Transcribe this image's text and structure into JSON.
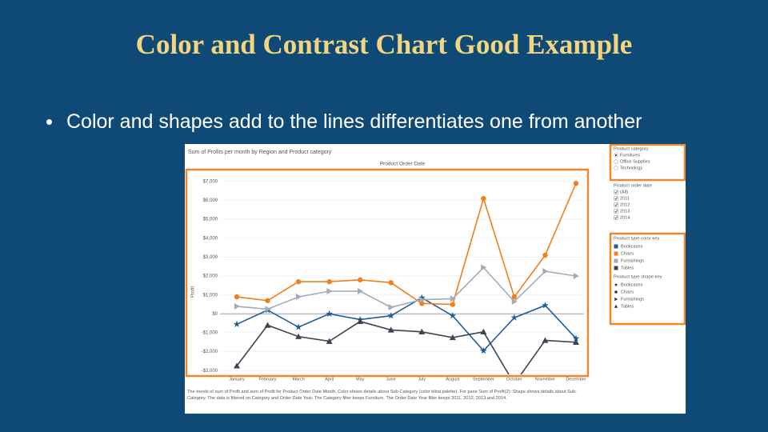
{
  "slide": {
    "title": "Color and Contrast Chart Good Example",
    "bullet": "Color and shapes add to the lines differentiates one from another"
  },
  "chart_data": {
    "type": "line",
    "title": "Sum of Profits per month by Region and Product category",
    "subtitle": "Product Order Date",
    "y_label": "Profit",
    "categories": [
      "January",
      "February",
      "March",
      "April",
      "May",
      "June",
      "July",
      "August",
      "September",
      "October",
      "November",
      "December"
    ],
    "series": [
      {
        "name": "Bookcases",
        "color": "#1f5c99",
        "shape": "star",
        "values": [
          -550,
          200,
          -700,
          0,
          -300,
          -100,
          850,
          -100,
          -1950,
          -200,
          450,
          -1300
        ]
      },
      {
        "name": "Chairs",
        "color": "#f07f1e",
        "shape": "circle",
        "values": [
          900,
          700,
          1700,
          1700,
          1800,
          1650,
          550,
          500,
          6100,
          900,
          3100,
          6900
        ]
      },
      {
        "name": "Furnishings",
        "color": "#a3acb9",
        "shape": "triangle-right",
        "values": [
          400,
          250,
          900,
          1200,
          1200,
          350,
          750,
          800,
          2450,
          650,
          2250,
          2000
        ]
      },
      {
        "name": "Tables",
        "color": "#3c4552",
        "shape": "triangle-up",
        "values": [
          -2750,
          -600,
          -1200,
          -1450,
          -400,
          -850,
          -950,
          -1250,
          -950,
          -3700,
          -1400,
          -1500
        ]
      }
    ],
    "ylim": [
      -3200,
      7500
    ],
    "yticks": [
      {
        "value": -3000,
        "label": "-$3,000"
      },
      {
        "value": -2000,
        "label": "-$2,000"
      },
      {
        "value": -1000,
        "label": "-$1,000"
      },
      {
        "value": 0,
        "label": "$0"
      },
      {
        "value": 1000,
        "label": "$1,000"
      },
      {
        "value": 2000,
        "label": "$2,000"
      },
      {
        "value": 3000,
        "label": "$3,000"
      },
      {
        "value": 4000,
        "label": "$4,000"
      },
      {
        "value": 5000,
        "label": "$5,000"
      },
      {
        "value": 6000,
        "label": "$6,000"
      },
      {
        "value": 7000,
        "label": "$7,000"
      }
    ],
    "grid": true,
    "filters": [
      {
        "title": "Product category",
        "kind": "radio",
        "options": [
          {
            "label": "Furnitures",
            "checked": true
          },
          {
            "label": "Office Supplies",
            "checked": false
          },
          {
            "label": "Technology",
            "checked": false
          }
        ]
      },
      {
        "title": "Product order date",
        "kind": "checkbox",
        "options": [
          {
            "label": "(All)",
            "checked": true
          },
          {
            "label": "2011",
            "checked": true
          },
          {
            "label": "2012",
            "checked": true
          },
          {
            "label": "2013",
            "checked": true
          },
          {
            "label": "2014",
            "checked": true
          }
        ]
      }
    ],
    "color_key_title": "Product type color key",
    "shape_key_title": "Product type shape key",
    "caption": "The trends of sum of Profit and sum of Profit for Product Order Date Month. Color shows details about Sub-Category (color blind palette). For pane Sum of Profit(2): Shape shows details about Sub-Category. The data is filtered on Category and Order Date Year. The Category filter keeps Furniture. The Order Date Year filter keeps 2011, 2012, 2013 and 2014."
  }
}
